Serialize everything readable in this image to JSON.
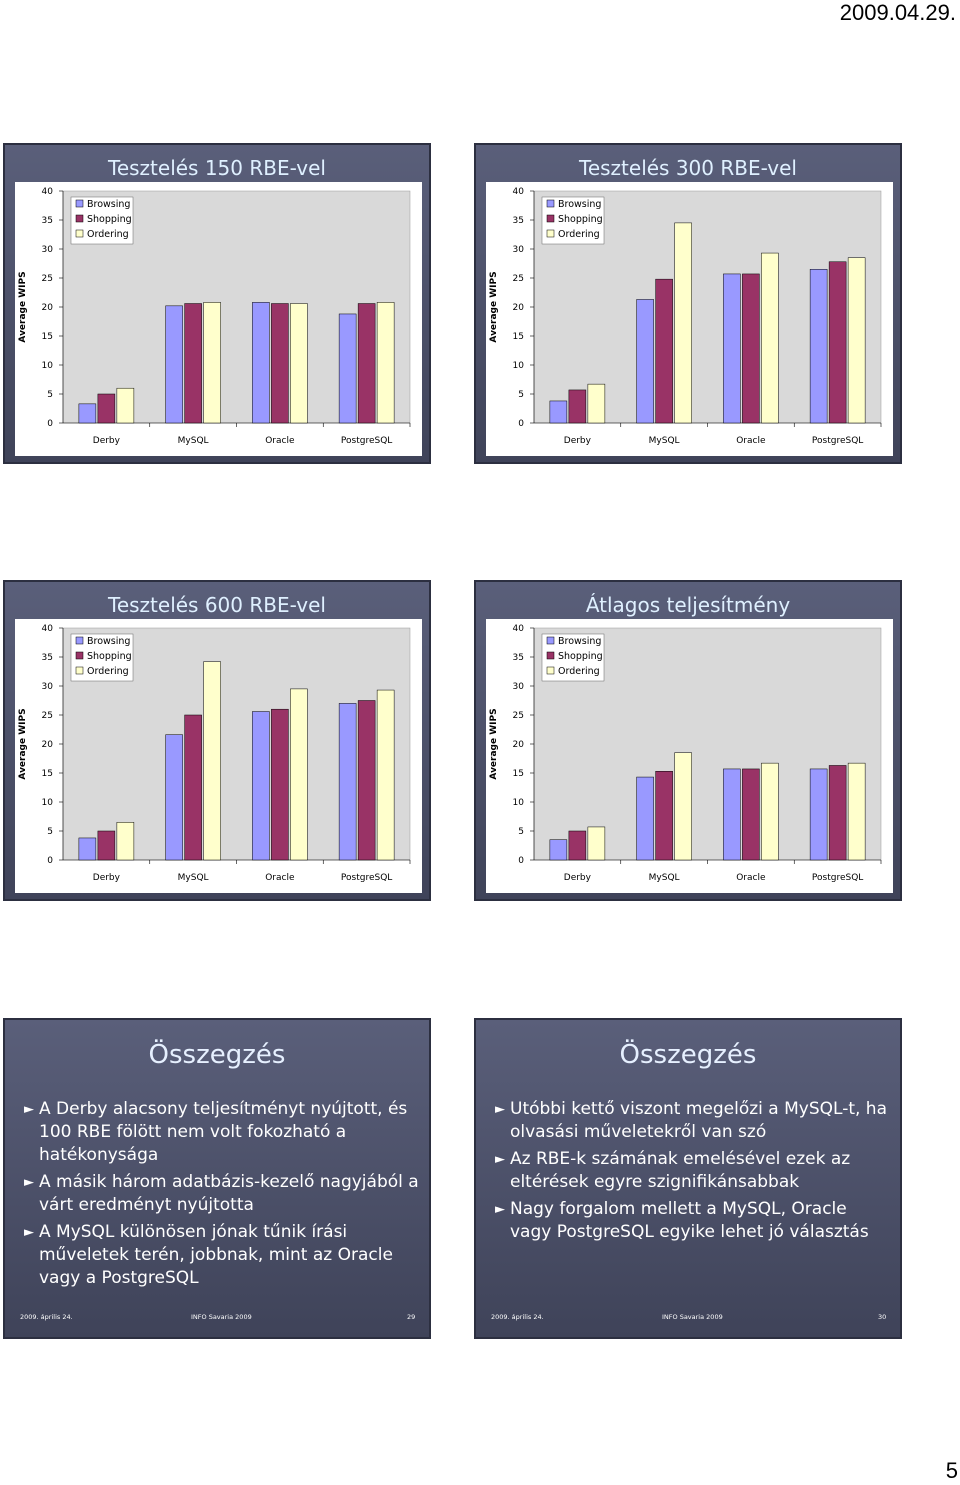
{
  "header": {
    "date": "2009.04.29."
  },
  "chart_data": [
    {
      "type": "bar",
      "title": "Tesztelés 150 RBE-vel",
      "ylabel": "Average WIPS",
      "categories": [
        "Derby",
        "MySQL",
        "Oracle",
        "PostgreSQL"
      ],
      "series": [
        {
          "name": "Browsing",
          "color": "#9999ff",
          "values": [
            3.3,
            20.2,
            20.8,
            18.8
          ]
        },
        {
          "name": "Shopping",
          "color": "#993366",
          "values": [
            5,
            20.6,
            20.6,
            20.6
          ]
        },
        {
          "name": "Ordering",
          "color": "#ffffcc",
          "values": [
            6,
            20.8,
            20.6,
            20.8
          ]
        }
      ],
      "ylim": [
        0,
        40
      ],
      "yticks": [
        0,
        5,
        10,
        15,
        20,
        25,
        30,
        35,
        40
      ]
    },
    {
      "type": "bar",
      "title": "Tesztelés 300 RBE-vel",
      "ylabel": "Average WIPS",
      "categories": [
        "Derby",
        "MySQL",
        "Oracle",
        "PostgreSQL"
      ],
      "series": [
        {
          "name": "Browsing",
          "color": "#9999ff",
          "values": [
            3.8,
            21.3,
            25.7,
            26.5
          ]
        },
        {
          "name": "Shopping",
          "color": "#993366",
          "values": [
            5.7,
            24.8,
            25.7,
            27.8
          ]
        },
        {
          "name": "Ordering",
          "color": "#ffffcc",
          "values": [
            6.7,
            34.5,
            29.3,
            28.5
          ]
        }
      ],
      "ylim": [
        0,
        40
      ],
      "yticks": [
        0,
        5,
        10,
        15,
        20,
        25,
        30,
        35,
        40
      ]
    },
    {
      "type": "bar",
      "title": "Tesztelés 600 RBE-vel",
      "ylabel": "Average WIPS",
      "categories": [
        "Derby",
        "MySQL",
        "Oracle",
        "PostgreSQL"
      ],
      "series": [
        {
          "name": "Browsing",
          "color": "#9999ff",
          "values": [
            3.8,
            21.6,
            25.6,
            27
          ]
        },
        {
          "name": "Shopping",
          "color": "#993366",
          "values": [
            5,
            25,
            26,
            27.5
          ]
        },
        {
          "name": "Ordering",
          "color": "#ffffcc",
          "values": [
            6.5,
            34.2,
            29.5,
            29.3
          ]
        }
      ],
      "ylim": [
        0,
        40
      ],
      "yticks": [
        0,
        5,
        10,
        15,
        20,
        25,
        30,
        35,
        40
      ]
    },
    {
      "type": "bar",
      "title": "Átlagos teljesítmény",
      "ylabel": "Average WIPS",
      "categories": [
        "Derby",
        "MySQL",
        "Oracle",
        "PostgreSQL"
      ],
      "series": [
        {
          "name": "Browsing",
          "color": "#9999ff",
          "values": [
            3.5,
            14.3,
            15.7,
            15.7
          ]
        },
        {
          "name": "Shopping",
          "color": "#993366",
          "values": [
            5,
            15.3,
            15.7,
            16.3
          ]
        },
        {
          "name": "Ordering",
          "color": "#ffffcc",
          "values": [
            5.7,
            18.5,
            16.7,
            16.7
          ]
        }
      ],
      "ylim": [
        0,
        40
      ],
      "yticks": [
        0,
        5,
        10,
        15,
        20,
        25,
        30,
        35,
        40
      ]
    }
  ],
  "slides": [
    {
      "title": "Összegzés",
      "bullets": [
        "A Derby alacsony teljesítményt nyújtott, és 100 RBE fölött nem volt fokozható a hatékonysága",
        "A másik három adatbázis-kezelő nagyjából a várt eredményt nyújtotta",
        "A MySQL különösen jónak tűnik írási műveletek terén, jobbnak, mint az Oracle vagy a PostgreSQL"
      ],
      "footer": {
        "date": "2009. április 24.",
        "event": "INFO Savaria 2009",
        "page": 29
      }
    },
    {
      "title": "Összegzés",
      "bullets": [
        "Utóbbi kettő viszont megelőzi a MySQL-t, ha olvasási műveletekről van szó",
        "Az RBE-k számának emelésével ezek az eltérések egyre szignifikánsabbak",
        "Nagy forgalom mellett a MySQL, Oracle vagy PostgreSQL egyike lehet jó választás"
      ],
      "footer": {
        "date": "2009. április 24.",
        "event": "INFO Savaria 2009",
        "page": 30
      }
    }
  ],
  "page_number": 5
}
